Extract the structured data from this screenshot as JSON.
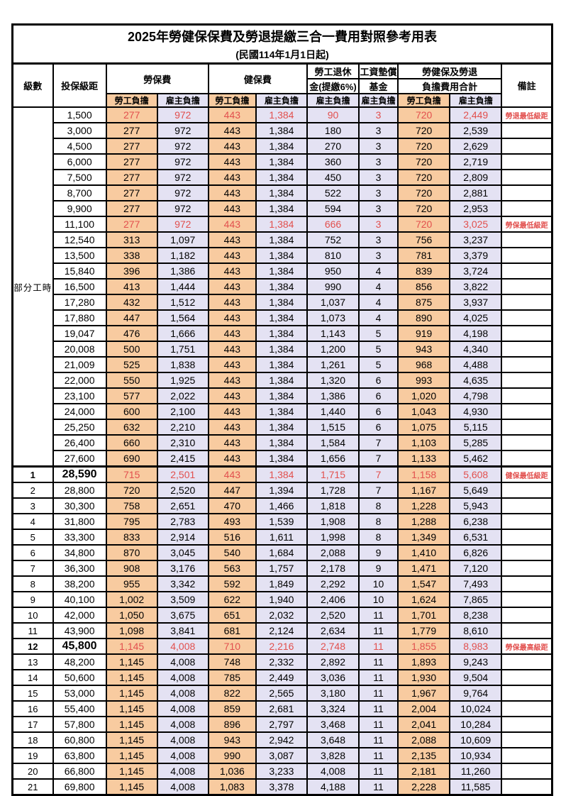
{
  "page": {
    "title": "2025年勞健保保費及勞退提繳三合一費用對照參考用表",
    "subtitle": "(民國114年1月1日起)"
  },
  "colors": {
    "employee_bg": "#F8CBA0",
    "employer_bg": "#E4E2F3",
    "highlight_text": "#E2504E",
    "border": "#000000"
  },
  "headers": {
    "level": "級數",
    "bracket": "投保級距",
    "labor_insurance": "勞保費",
    "health_insurance": "健保費",
    "pension_top": "勞工退休",
    "pension_bottom": "金(提繳6%)",
    "wage_fund_top": "工資墊償",
    "wage_fund_bottom": "基金",
    "total_top": "勞健保及勞退",
    "total_bottom": "負擔費用合計",
    "remark": "備註",
    "employee_burden": "勞工負擔",
    "employer_burden": "雇主負擔"
  },
  "part_time_label": "部分工時",
  "rows": [
    {
      "level": "",
      "bracket": "1,500",
      "cells": [
        "277",
        "972",
        "443",
        "1,384",
        "90",
        "3",
        "720",
        "2,449"
      ],
      "remark": "勞退最低級距",
      "red": true
    },
    {
      "level": "",
      "bracket": "3,000",
      "cells": [
        "277",
        "972",
        "443",
        "1,384",
        "180",
        "3",
        "720",
        "2,539"
      ],
      "remark": ""
    },
    {
      "level": "",
      "bracket": "4,500",
      "cells": [
        "277",
        "972",
        "443",
        "1,384",
        "270",
        "3",
        "720",
        "2,629"
      ],
      "remark": ""
    },
    {
      "level": "",
      "bracket": "6,000",
      "cells": [
        "277",
        "972",
        "443",
        "1,384",
        "360",
        "3",
        "720",
        "2,719"
      ],
      "remark": ""
    },
    {
      "level": "",
      "bracket": "7,500",
      "cells": [
        "277",
        "972",
        "443",
        "1,384",
        "450",
        "3",
        "720",
        "2,809"
      ],
      "remark": ""
    },
    {
      "level": "",
      "bracket": "8,700",
      "cells": [
        "277",
        "972",
        "443",
        "1,384",
        "522",
        "3",
        "720",
        "2,881"
      ],
      "remark": ""
    },
    {
      "level": "",
      "bracket": "9,900",
      "cells": [
        "277",
        "972",
        "443",
        "1,384",
        "594",
        "3",
        "720",
        "2,953"
      ],
      "remark": ""
    },
    {
      "level": "",
      "bracket": "11,100",
      "cells": [
        "277",
        "972",
        "443",
        "1,384",
        "666",
        "3",
        "720",
        "3,025"
      ],
      "remark": "勞保最低級距",
      "red": true
    },
    {
      "level": "",
      "bracket": "12,540",
      "cells": [
        "313",
        "1,097",
        "443",
        "1,384",
        "752",
        "3",
        "756",
        "3,237"
      ],
      "remark": ""
    },
    {
      "level": "",
      "bracket": "13,500",
      "cells": [
        "338",
        "1,182",
        "443",
        "1,384",
        "810",
        "3",
        "781",
        "3,379"
      ],
      "remark": ""
    },
    {
      "level": "",
      "bracket": "15,840",
      "cells": [
        "396",
        "1,386",
        "443",
        "1,384",
        "950",
        "4",
        "839",
        "3,724"
      ],
      "remark": ""
    },
    {
      "level": "",
      "bracket": "16,500",
      "cells": [
        "413",
        "1,444",
        "443",
        "1,384",
        "990",
        "4",
        "856",
        "3,822"
      ],
      "remark": ""
    },
    {
      "level": "",
      "bracket": "17,280",
      "cells": [
        "432",
        "1,512",
        "443",
        "1,384",
        "1,037",
        "4",
        "875",
        "3,937"
      ],
      "remark": ""
    },
    {
      "level": "",
      "bracket": "17,880",
      "cells": [
        "447",
        "1,564",
        "443",
        "1,384",
        "1,073",
        "4",
        "890",
        "4,025"
      ],
      "remark": ""
    },
    {
      "level": "",
      "bracket": "19,047",
      "cells": [
        "476",
        "1,666",
        "443",
        "1,384",
        "1,143",
        "5",
        "919",
        "4,198"
      ],
      "remark": ""
    },
    {
      "level": "",
      "bracket": "20,008",
      "cells": [
        "500",
        "1,751",
        "443",
        "1,384",
        "1,200",
        "5",
        "943",
        "4,340"
      ],
      "remark": ""
    },
    {
      "level": "",
      "bracket": "21,009",
      "cells": [
        "525",
        "1,838",
        "443",
        "1,384",
        "1,261",
        "5",
        "968",
        "4,488"
      ],
      "remark": ""
    },
    {
      "level": "",
      "bracket": "22,000",
      "cells": [
        "550",
        "1,925",
        "443",
        "1,384",
        "1,320",
        "6",
        "993",
        "4,635"
      ],
      "remark": ""
    },
    {
      "level": "",
      "bracket": "23,100",
      "cells": [
        "577",
        "2,022",
        "443",
        "1,384",
        "1,386",
        "6",
        "1,020",
        "4,798"
      ],
      "remark": ""
    },
    {
      "level": "",
      "bracket": "24,000",
      "cells": [
        "600",
        "2,100",
        "443",
        "1,384",
        "1,440",
        "6",
        "1,043",
        "4,930"
      ],
      "remark": ""
    },
    {
      "level": "",
      "bracket": "25,250",
      "cells": [
        "632",
        "2,210",
        "443",
        "1,384",
        "1,515",
        "6",
        "1,075",
        "5,115"
      ],
      "remark": ""
    },
    {
      "level": "",
      "bracket": "26,400",
      "cells": [
        "660",
        "2,310",
        "443",
        "1,384",
        "1,584",
        "7",
        "1,103",
        "5,285"
      ],
      "remark": ""
    },
    {
      "level": "",
      "bracket": "27,600",
      "cells": [
        "690",
        "2,415",
        "443",
        "1,384",
        "1,656",
        "7",
        "1,133",
        "5,462"
      ],
      "remark": ""
    },
    {
      "level": "1",
      "bracket": "28,590",
      "cells": [
        "715",
        "2,501",
        "443",
        "1,384",
        "1,715",
        "7",
        "1,158",
        "5,608"
      ],
      "remark": "健保最低級距",
      "red": true,
      "bold": true
    },
    {
      "level": "2",
      "bracket": "28,800",
      "cells": [
        "720",
        "2,520",
        "447",
        "1,394",
        "1,728",
        "7",
        "1,167",
        "5,649"
      ],
      "remark": ""
    },
    {
      "level": "3",
      "bracket": "30,300",
      "cells": [
        "758",
        "2,651",
        "470",
        "1,466",
        "1,818",
        "8",
        "1,228",
        "5,943"
      ],
      "remark": ""
    },
    {
      "level": "4",
      "bracket": "31,800",
      "cells": [
        "795",
        "2,783",
        "493",
        "1,539",
        "1,908",
        "8",
        "1,288",
        "6,238"
      ],
      "remark": ""
    },
    {
      "level": "5",
      "bracket": "33,300",
      "cells": [
        "833",
        "2,914",
        "516",
        "1,611",
        "1,998",
        "8",
        "1,349",
        "6,531"
      ],
      "remark": ""
    },
    {
      "level": "6",
      "bracket": "34,800",
      "cells": [
        "870",
        "3,045",
        "540",
        "1,684",
        "2,088",
        "9",
        "1,410",
        "6,826"
      ],
      "remark": ""
    },
    {
      "level": "7",
      "bracket": "36,300",
      "cells": [
        "908",
        "3,176",
        "563",
        "1,757",
        "2,178",
        "9",
        "1,471",
        "7,120"
      ],
      "remark": ""
    },
    {
      "level": "8",
      "bracket": "38,200",
      "cells": [
        "955",
        "3,342",
        "592",
        "1,849",
        "2,292",
        "10",
        "1,547",
        "7,493"
      ],
      "remark": ""
    },
    {
      "level": "9",
      "bracket": "40,100",
      "cells": [
        "1,002",
        "3,509",
        "622",
        "1,940",
        "2,406",
        "10",
        "1,624",
        "7,865"
      ],
      "remark": ""
    },
    {
      "level": "10",
      "bracket": "42,000",
      "cells": [
        "1,050",
        "3,675",
        "651",
        "2,032",
        "2,520",
        "11",
        "1,701",
        "8,238"
      ],
      "remark": ""
    },
    {
      "level": "11",
      "bracket": "43,900",
      "cells": [
        "1,098",
        "3,841",
        "681",
        "2,124",
        "2,634",
        "11",
        "1,779",
        "8,610"
      ],
      "remark": ""
    },
    {
      "level": "12",
      "bracket": "45,800",
      "cells": [
        "1,145",
        "4,008",
        "710",
        "2,216",
        "2,748",
        "11",
        "1,855",
        "8,983"
      ],
      "remark": "勞保最高級距",
      "red": true,
      "bold": true
    },
    {
      "level": "13",
      "bracket": "48,200",
      "cells": [
        "1,145",
        "4,008",
        "748",
        "2,332",
        "2,892",
        "11",
        "1,893",
        "9,243"
      ],
      "remark": ""
    },
    {
      "level": "14",
      "bracket": "50,600",
      "cells": [
        "1,145",
        "4,008",
        "785",
        "2,449",
        "3,036",
        "11",
        "1,930",
        "9,504"
      ],
      "remark": ""
    },
    {
      "level": "15",
      "bracket": "53,000",
      "cells": [
        "1,145",
        "4,008",
        "822",
        "2,565",
        "3,180",
        "11",
        "1,967",
        "9,764"
      ],
      "remark": ""
    },
    {
      "level": "16",
      "bracket": "55,400",
      "cells": [
        "1,145",
        "4,008",
        "859",
        "2,681",
        "3,324",
        "11",
        "2,004",
        "10,024"
      ],
      "remark": ""
    },
    {
      "level": "17",
      "bracket": "57,800",
      "cells": [
        "1,145",
        "4,008",
        "896",
        "2,797",
        "3,468",
        "11",
        "2,041",
        "10,284"
      ],
      "remark": ""
    },
    {
      "level": "18",
      "bracket": "60,800",
      "cells": [
        "1,145",
        "4,008",
        "943",
        "2,942",
        "3,648",
        "11",
        "2,088",
        "10,609"
      ],
      "remark": ""
    },
    {
      "level": "19",
      "bracket": "63,800",
      "cells": [
        "1,145",
        "4,008",
        "990",
        "3,087",
        "3,828",
        "11",
        "2,135",
        "10,934"
      ],
      "remark": ""
    },
    {
      "level": "20",
      "bracket": "66,800",
      "cells": [
        "1,145",
        "4,008",
        "1,036",
        "3,233",
        "4,008",
        "11",
        "2,181",
        "11,260"
      ],
      "remark": ""
    },
    {
      "level": "21",
      "bracket": "69,800",
      "cells": [
        "1,145",
        "4,008",
        "1,083",
        "3,378",
        "4,188",
        "11",
        "2,228",
        "11,585"
      ],
      "remark": ""
    }
  ]
}
